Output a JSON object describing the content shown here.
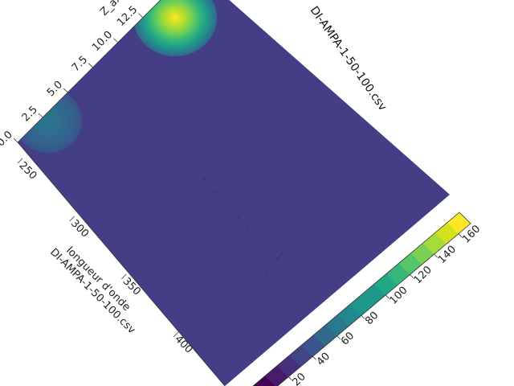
{
  "chart_data": {
    "type": "heatmap",
    "title": "DI-AMPA-1-50-100.csv",
    "xlabel": "longueur d'onde",
    "xlabel_secondary": "DI-AMPA-1-50-100.csv",
    "zlabel": "Z_axis",
    "x_ticks": [
      250,
      300,
      350,
      400
    ],
    "z_ticks": [
      "0.0",
      "2.5",
      "5.0",
      "7.5",
      "10.0",
      "12.5"
    ],
    "colorbar": {
      "ticks": [
        20,
        40,
        60,
        80,
        100,
        120,
        140,
        160
      ],
      "range": [
        0,
        170
      ],
      "levels": [
        0,
        10,
        20,
        30,
        40,
        50,
        60,
        70,
        80,
        90,
        100,
        110,
        120,
        130,
        140,
        150,
        160,
        170
      ]
    },
    "peaks": [
      {
        "z": 1.0,
        "max": 60
      },
      {
        "z": 12.5,
        "max": 170
      }
    ],
    "background_level": 10,
    "colors": {
      "background": "#433e85",
      "low": "#440154",
      "high": "#fde725"
    }
  }
}
